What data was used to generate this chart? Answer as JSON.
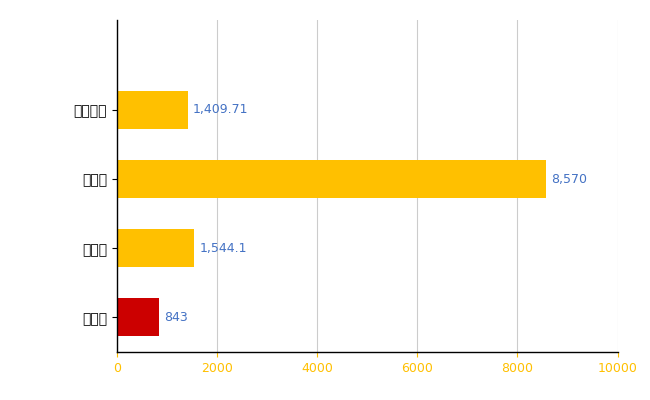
{
  "categories": [
    "長与町",
    "県平均",
    "県最大",
    "全国平均"
  ],
  "values": [
    843,
    1544.1,
    8570,
    1409.71
  ],
  "bar_colors": [
    "#CC0000",
    "#FFC000",
    "#FFC000",
    "#FFC000"
  ],
  "labels": [
    "843",
    "1,544.1",
    "8,570",
    "1,409.71"
  ],
  "xlim": [
    0,
    10000
  ],
  "xticks": [
    0,
    2000,
    4000,
    6000,
    8000,
    10000
  ],
  "background_color": "#ffffff",
  "grid_color": "#cccccc",
  "label_color": "#4472C4",
  "tick_color": "#FFC000"
}
